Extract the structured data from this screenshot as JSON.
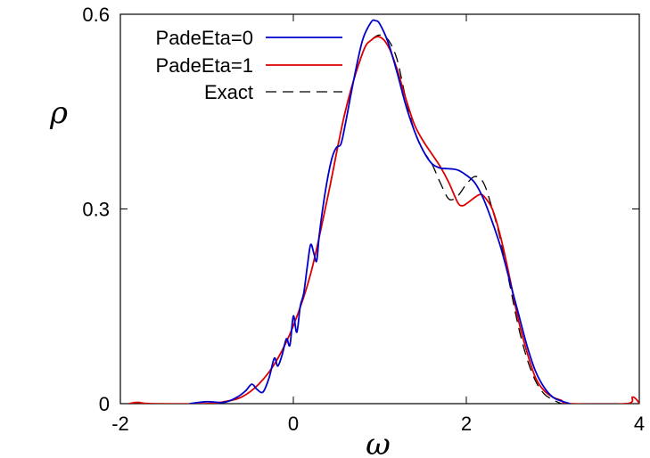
{
  "chart_data": {
    "type": "line",
    "title": "",
    "xlabel": "ω",
    "ylabel": "ρ",
    "xlim": [
      -2,
      4
    ],
    "ylim": [
      0,
      0.6
    ],
    "xticks": [
      -2,
      0,
      2,
      4
    ],
    "xtick_labels": [
      "-2",
      "0",
      "2",
      "4"
    ],
    "yticks": [
      0,
      0.3,
      0.6
    ],
    "ytick_labels": [
      "0",
      "0.3",
      "0.6"
    ],
    "grid": false,
    "legend_position": "top-left",
    "series": [
      {
        "name": "PadeEta=0",
        "color": "#0000cc",
        "dash": "solid",
        "points": [
          [
            -1.2,
            0
          ],
          [
            -1.0,
            0.003
          ],
          [
            -0.8,
            0.002
          ],
          [
            -0.65,
            0.01
          ],
          [
            -0.55,
            0.02
          ],
          [
            -0.48,
            0.03
          ],
          [
            -0.42,
            0.022
          ],
          [
            -0.35,
            0.018
          ],
          [
            -0.28,
            0.04
          ],
          [
            -0.22,
            0.07
          ],
          [
            -0.18,
            0.058
          ],
          [
            -0.13,
            0.075
          ],
          [
            -0.08,
            0.1
          ],
          [
            -0.04,
            0.09
          ],
          [
            0.0,
            0.135
          ],
          [
            0.04,
            0.11
          ],
          [
            0.08,
            0.15
          ],
          [
            0.12,
            0.17
          ],
          [
            0.16,
            0.21
          ],
          [
            0.2,
            0.245
          ],
          [
            0.24,
            0.23
          ],
          [
            0.27,
            0.22
          ],
          [
            0.3,
            0.26
          ],
          [
            0.35,
            0.31
          ],
          [
            0.4,
            0.35
          ],
          [
            0.45,
            0.38
          ],
          [
            0.5,
            0.395
          ],
          [
            0.55,
            0.4
          ],
          [
            0.6,
            0.43
          ],
          [
            0.7,
            0.5
          ],
          [
            0.8,
            0.56
          ],
          [
            0.9,
            0.588
          ],
          [
            0.95,
            0.59
          ],
          [
            1.0,
            0.585
          ],
          [
            1.1,
            0.555
          ],
          [
            1.2,
            0.51
          ],
          [
            1.3,
            0.46
          ],
          [
            1.4,
            0.42
          ],
          [
            1.5,
            0.39
          ],
          [
            1.6,
            0.37
          ],
          [
            1.7,
            0.363
          ],
          [
            1.8,
            0.362
          ],
          [
            1.9,
            0.36
          ],
          [
            2.0,
            0.352
          ],
          [
            2.1,
            0.34
          ],
          [
            2.2,
            0.315
          ],
          [
            2.3,
            0.28
          ],
          [
            2.4,
            0.24
          ],
          [
            2.5,
            0.19
          ],
          [
            2.6,
            0.14
          ],
          [
            2.7,
            0.09
          ],
          [
            2.8,
            0.05
          ],
          [
            2.9,
            0.025
          ],
          [
            3.0,
            0.01
          ],
          [
            3.1,
            0.004
          ],
          [
            3.2,
            0
          ]
        ]
      },
      {
        "name": "PadeEta=1",
        "color": "#dd0000",
        "dash": "solid",
        "points": [
          [
            -1.9,
            0
          ],
          [
            -1.8,
            0.002
          ],
          [
            -1.65,
            0
          ],
          [
            -1.0,
            0
          ],
          [
            -0.8,
            0.003
          ],
          [
            -0.6,
            0.01
          ],
          [
            -0.4,
            0.03
          ],
          [
            -0.2,
            0.065
          ],
          [
            0.0,
            0.12
          ],
          [
            0.2,
            0.2
          ],
          [
            0.4,
            0.32
          ],
          [
            0.6,
            0.45
          ],
          [
            0.8,
            0.54
          ],
          [
            0.9,
            0.56
          ],
          [
            1.0,
            0.565
          ],
          [
            1.1,
            0.55
          ],
          [
            1.2,
            0.515
          ],
          [
            1.3,
            0.47
          ],
          [
            1.4,
            0.43
          ],
          [
            1.5,
            0.405
          ],
          [
            1.6,
            0.385
          ],
          [
            1.7,
            0.365
          ],
          [
            1.8,
            0.34
          ],
          [
            1.9,
            0.31
          ],
          [
            1.95,
            0.305
          ],
          [
            2.0,
            0.308
          ],
          [
            2.1,
            0.318
          ],
          [
            2.15,
            0.322
          ],
          [
            2.2,
            0.32
          ],
          [
            2.3,
            0.3
          ],
          [
            2.4,
            0.255
          ],
          [
            2.5,
            0.195
          ],
          [
            2.6,
            0.13
          ],
          [
            2.7,
            0.08
          ],
          [
            2.8,
            0.04
          ],
          [
            2.9,
            0.02
          ],
          [
            3.0,
            0.01
          ],
          [
            3.1,
            0.005
          ],
          [
            3.2,
            0
          ],
          [
            3.85,
            0
          ],
          [
            3.92,
            0.01
          ],
          [
            3.97,
            0.006
          ],
          [
            4.0,
            0
          ]
        ]
      },
      {
        "name": "Exact",
        "color": "#000000",
        "dash": "dashed",
        "points": [
          [
            -1.0,
            0
          ],
          [
            -0.8,
            0.003
          ],
          [
            -0.6,
            0.01
          ],
          [
            -0.4,
            0.03
          ],
          [
            -0.2,
            0.065
          ],
          [
            0.0,
            0.12
          ],
          [
            0.2,
            0.2
          ],
          [
            0.4,
            0.32
          ],
          [
            0.6,
            0.45
          ],
          [
            0.8,
            0.54
          ],
          [
            0.9,
            0.56
          ],
          [
            1.0,
            0.568
          ],
          [
            1.1,
            0.56
          ],
          [
            1.2,
            0.53
          ],
          [
            1.3,
            0.47
          ],
          [
            1.4,
            0.42
          ],
          [
            1.5,
            0.39
          ],
          [
            1.6,
            0.37
          ],
          [
            1.7,
            0.34
          ],
          [
            1.8,
            0.315
          ],
          [
            1.9,
            0.32
          ],
          [
            2.0,
            0.338
          ],
          [
            2.1,
            0.35
          ],
          [
            2.2,
            0.34
          ],
          [
            2.3,
            0.3
          ],
          [
            2.4,
            0.25
          ],
          [
            2.5,
            0.185
          ],
          [
            2.6,
            0.12
          ],
          [
            2.7,
            0.07
          ],
          [
            2.8,
            0.035
          ],
          [
            2.9,
            0.015
          ],
          [
            3.0,
            0.006
          ],
          [
            3.1,
            0
          ]
        ]
      }
    ]
  }
}
